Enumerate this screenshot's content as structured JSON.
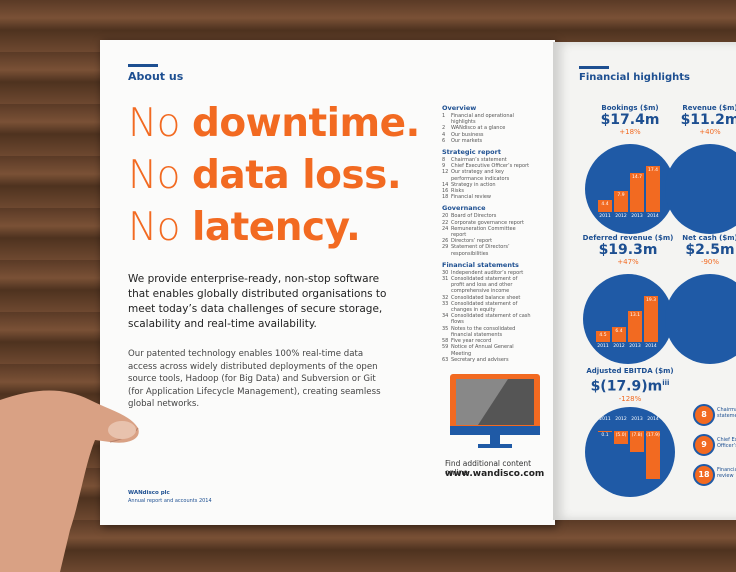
{
  "left_page": {
    "section": "About us",
    "headline": [
      {
        "light": "No",
        "bold": "downtime."
      },
      {
        "light": "No",
        "bold": "data loss."
      },
      {
        "light": "No",
        "bold": "latency."
      }
    ],
    "intro": "We provide enterprise-ready, non-stop software that enables globally distributed organisations to meet today’s data challenges of secure storage, scalability and real-time availability.",
    "body": "Our patented technology enables 100% real-time data access across widely distributed deployments of the open source tools, Hadoop (for Big Data) and Subversion or Git (for Application Lifecycle Management), creating seamless global networks.",
    "footer": {
      "company": "WANdisco plc",
      "report": "Annual report and accounts 2014"
    },
    "contents": [
      {
        "heading": "Overview",
        "items": [
          {
            "page": "1",
            "title": "Financial and operational highlights"
          },
          {
            "page": "2",
            "title": "WANdisco at a glance"
          },
          {
            "page": "4",
            "title": "Our business"
          },
          {
            "page": "6",
            "title": "Our markets"
          }
        ]
      },
      {
        "heading": "Strategic report",
        "items": [
          {
            "page": "8",
            "title": "Chairman’s statement"
          },
          {
            "page": "9",
            "title": "Chief Executive Officer’s report"
          },
          {
            "page": "12",
            "title": "Our strategy and key performance indicators"
          },
          {
            "page": "14",
            "title": "Strategy in action"
          },
          {
            "page": "16",
            "title": "Risks"
          },
          {
            "page": "18",
            "title": "Financial review"
          }
        ]
      },
      {
        "heading": "Governance",
        "items": [
          {
            "page": "20",
            "title": "Board of Directors"
          },
          {
            "page": "22",
            "title": "Corporate governance report"
          },
          {
            "page": "24",
            "title": "Remuneration Committee report"
          },
          {
            "page": "26",
            "title": "Directors’ report"
          },
          {
            "page": "29",
            "title": "Statement of Directors’ responsibilities"
          }
        ]
      },
      {
        "heading": "Financial statements",
        "items": [
          {
            "page": "30",
            "title": "Independent auditor’s report"
          },
          {
            "page": "31",
            "title": "Consolidated statement of profit and loss and other comprehensive income"
          },
          {
            "page": "32",
            "title": "Consolidated balance sheet"
          },
          {
            "page": "33",
            "title": "Consolidated statement of changes in equity"
          },
          {
            "page": "34",
            "title": "Consolidated statement of cash flows"
          },
          {
            "page": "35",
            "title": "Notes to the consolidated financial statements"
          },
          {
            "page": "58",
            "title": "Five year record"
          },
          {
            "page": "59",
            "title": "Notice of Annual General Meeting"
          },
          {
            "page": "63",
            "title": "Secretary and advisers"
          }
        ]
      }
    ],
    "online": {
      "caption": "Find additional content online",
      "url": "www.wandisco.com"
    }
  },
  "right_page": {
    "section": "Financial highlights",
    "charts": [
      {
        "title": "Bookings ($m)",
        "value": "$17.4m",
        "change": "+18%",
        "years": [
          "2011",
          "2012",
          "2013",
          "2014"
        ],
        "values": [
          4.4,
          7.9,
          14.7,
          17.4
        ]
      },
      {
        "title": "Revenue ($m)",
        "value": "$11.2m",
        "change": "+40%"
      },
      {
        "title": "Deferred revenue ($m)",
        "value": "$19.3m",
        "change": "+47%",
        "years": [
          "2011",
          "2012",
          "2013",
          "2014"
        ],
        "values": [
          4.5,
          6.4,
          13.1,
          19.3
        ]
      },
      {
        "title": "Net cash ($m)",
        "value": "$2.5m",
        "change": "-90%"
      },
      {
        "title": "Adjusted EBITDA ($m)",
        "value": "$(17.9)m",
        "note": "iii",
        "change": "-128%",
        "years": [
          "2011",
          "2012",
          "2013",
          "2014"
        ],
        "values": [
          0.1,
          -5.0,
          -7.8,
          -17.9
        ],
        "value_labels": [
          "0.1",
          "(5.0)",
          "(7.8)",
          "(17.9)"
        ]
      }
    ],
    "links": [
      {
        "page": "8",
        "title": "Chairman’s statement"
      },
      {
        "page": "9",
        "title": "Chief Executive Officer’s report"
      },
      {
        "page": "18",
        "title": "Financial review"
      }
    ]
  }
}
